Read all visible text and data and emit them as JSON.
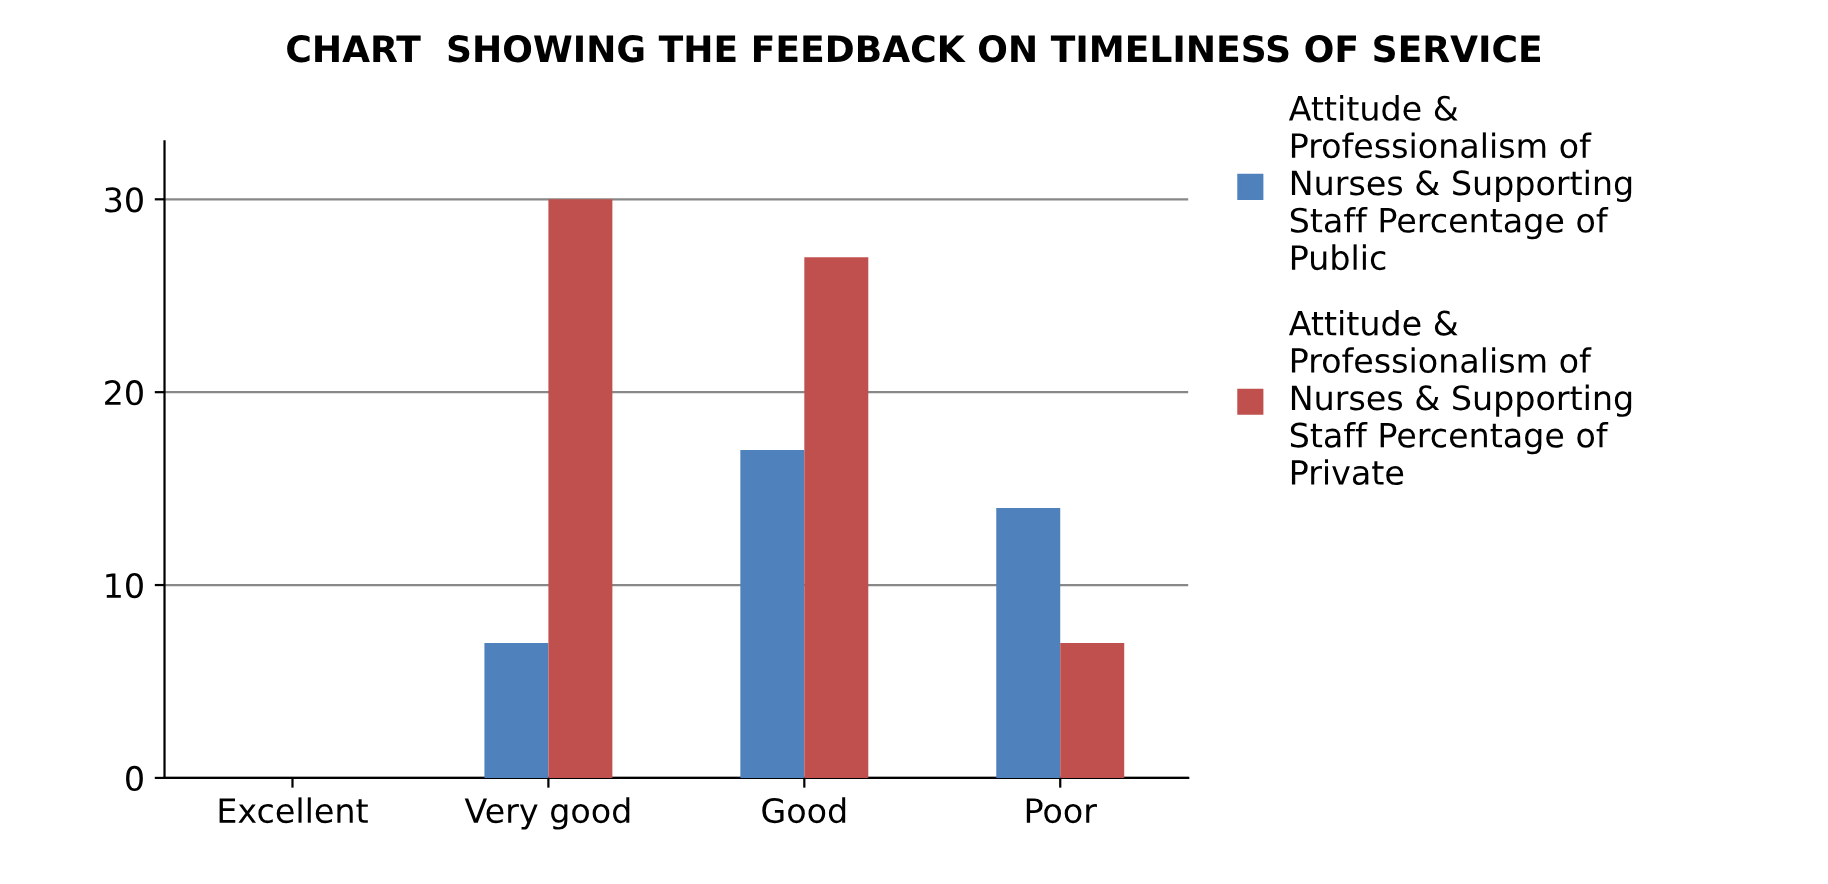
{
  "chart_data": {
    "type": "bar",
    "title": "CHART  SHOWING THE FEEDBACK ON TIMELINESS OF SERVICE",
    "categories": [
      "Excellent",
      "Very good",
      "Good",
      "Poor"
    ],
    "series": [
      {
        "name": "Attitude & Professionalism of Nurses & Supporting Staff Percentage of Public",
        "color": "#4f81bd",
        "values": [
          0,
          7,
          17,
          14
        ]
      },
      {
        "name": "Attitude & Professionalism of Nurses & Supporting Staff Percentage of Private",
        "color": "#c0504d",
        "values": [
          0,
          30,
          27,
          7
        ]
      }
    ],
    "ylim": [
      0,
      33
    ],
    "yticks": [
      0,
      10,
      20,
      30
    ],
    "grid": "y",
    "legend": "right"
  }
}
